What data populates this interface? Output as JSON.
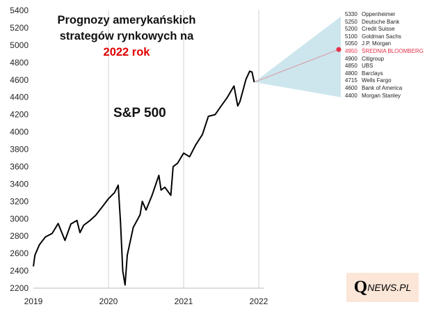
{
  "chart_data": {
    "type": "line",
    "title_lines": [
      "Prognozy amerykańskich",
      "strategów rynkowych na"
    ],
    "title_highlight": "2022 rok",
    "series_label": "S&P 500",
    "xlabel": "",
    "ylabel": "",
    "xlim": [
      2019,
      2022
    ],
    "ylim": [
      2200,
      5400
    ],
    "x_ticks": [
      "2019",
      "2020",
      "2021",
      "2022"
    ],
    "y_ticks": [
      "2200",
      "2400",
      "2600",
      "2800",
      "3000",
      "3200",
      "3400",
      "3600",
      "3800",
      "4000",
      "4200",
      "4400",
      "4600",
      "4800",
      "5000",
      "5200",
      "5400"
    ],
    "grid": "vertical at years",
    "x": [
      2019.0,
      2019.02,
      2019.08,
      2019.16,
      2019.25,
      2019.33,
      2019.42,
      2019.5,
      2019.58,
      2019.62,
      2019.67,
      2019.75,
      2019.83,
      2019.92,
      2020.0,
      2020.08,
      2020.13,
      2020.16,
      2020.19,
      2020.22,
      2020.25,
      2020.33,
      2020.42,
      2020.45,
      2020.5,
      2020.58,
      2020.67,
      2020.7,
      2020.75,
      2020.83,
      2020.86,
      2020.92,
      2021.0,
      2021.08,
      2021.16,
      2021.25,
      2021.33,
      2021.42,
      2021.5,
      2021.58,
      2021.67,
      2021.72,
      2021.75,
      2021.83,
      2021.88,
      2021.91,
      2021.94
    ],
    "values": [
      2450,
      2580,
      2700,
      2790,
      2830,
      2945,
      2750,
      2940,
      2980,
      2840,
      2926,
      2977,
      3040,
      3140,
      3231,
      3300,
      3386,
      2954,
      2400,
      2237,
      2580,
      2900,
      3045,
      3200,
      3100,
      3270,
      3500,
      3330,
      3363,
      3270,
      3600,
      3640,
      3756,
      3714,
      3850,
      3970,
      4180,
      4200,
      4300,
      4395,
      4530,
      4300,
      4350,
      4605,
      4700,
      4690,
      4574
    ],
    "forecast": [
      {
        "value": 5330,
        "name": "Oppenheimer"
      },
      {
        "value": 5250,
        "name": "Deutsche Bank"
      },
      {
        "value": 5200,
        "name": "Credit Suisse"
      },
      {
        "value": 5100,
        "name": "Goldman Sachs"
      },
      {
        "value": 5050,
        "name": "J.P. Morgan"
      },
      {
        "value": 4950,
        "name": "ŚREDNIA BLOOMBERG"
      },
      {
        "value": 4900,
        "name": "Citigroup"
      },
      {
        "value": 4850,
        "name": "UBS"
      },
      {
        "value": 4800,
        "name": "Barclays"
      },
      {
        "value": 4715,
        "name": "Wells Fargo"
      },
      {
        "value": 4600,
        "name": "Bank of America"
      },
      {
        "value": 4400,
        "name": "Morgan Stanley"
      }
    ],
    "forecast_highlight_index": 5,
    "colors": {
      "line": "#000000",
      "fan": "#cde6ee",
      "highlight": "#e8304a",
      "title_red": "#e00000",
      "grid": "#d0d0d0"
    }
  },
  "logo": {
    "q": "Q",
    "rest": "NEWS.PL"
  }
}
